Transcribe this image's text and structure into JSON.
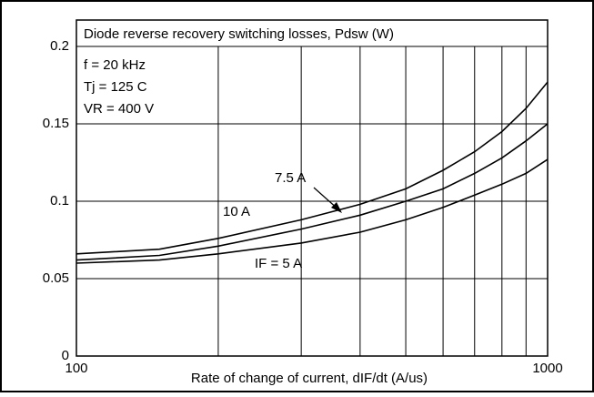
{
  "chart_data": {
    "type": "line",
    "title": "Diode reverse recovery switching losses,  Pdsw (W)",
    "x_label": "Rate of change of current, dIF/dt (A/us)",
    "conditions": [
      "f = 20 kHz",
      "Tj = 125 C",
      "VR = 400 V"
    ],
    "x": [
      100,
      150,
      200,
      300,
      400,
      500,
      600,
      700,
      800,
      900,
      1000
    ],
    "series": [
      {
        "name": "10 A",
        "color": "#000000",
        "values": [
          0.066,
          0.069,
          0.076,
          0.088,
          0.098,
          0.108,
          0.12,
          0.132,
          0.145,
          0.16,
          0.177
        ]
      },
      {
        "name": "7.5 A",
        "color": "#000000",
        "values": [
          0.062,
          0.065,
          0.071,
          0.082,
          0.091,
          0.1,
          0.108,
          0.118,
          0.128,
          0.139,
          0.15
        ]
      },
      {
        "name": "IF = 5 A",
        "color": "#000000",
        "values": [
          0.06,
          0.062,
          0.066,
          0.073,
          0.08,
          0.088,
          0.096,
          0.104,
          0.111,
          0.118,
          0.127
        ]
      }
    ],
    "xlim": [
      100,
      1000
    ],
    "xscale": "log",
    "xticks": [
      100,
      1000
    ],
    "xgrid_minor": [
      200,
      300,
      400,
      500,
      600,
      700,
      800,
      900
    ],
    "ylim": [
      0,
      0.2
    ],
    "yticks": [
      0,
      0.05,
      0.1,
      0.15,
      0.2
    ],
    "grid": true
  }
}
